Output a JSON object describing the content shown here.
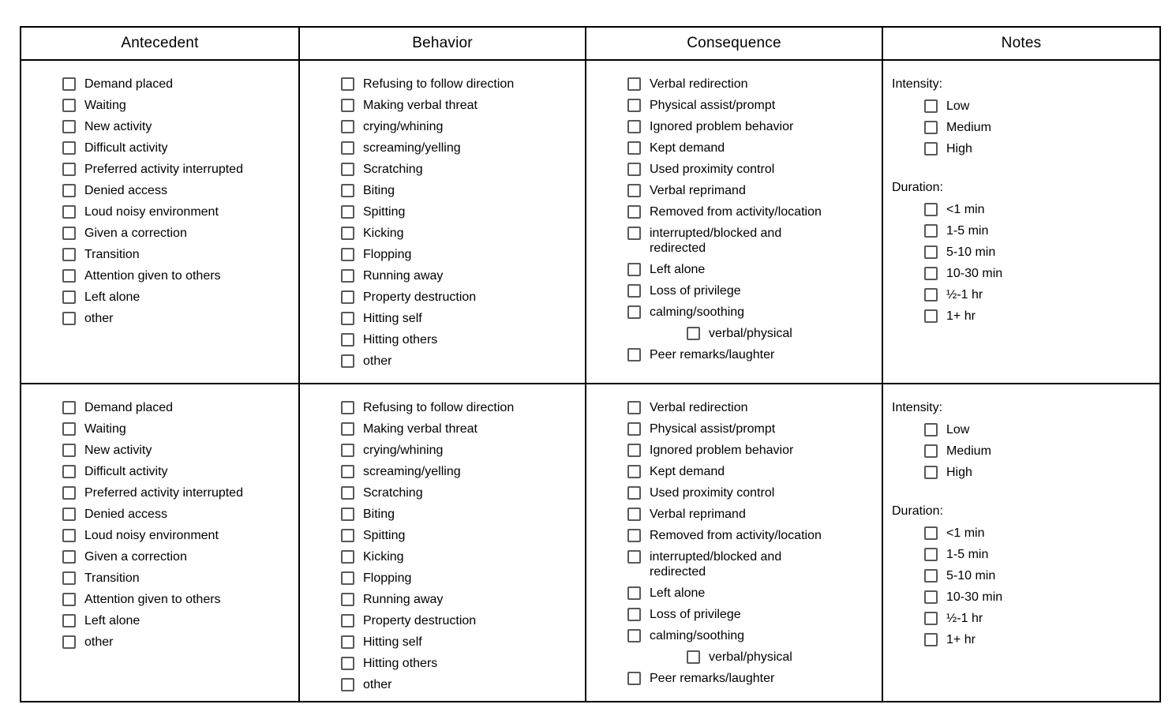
{
  "headers": [
    "Antecedent",
    "Behavior",
    "Consequence",
    "Notes"
  ],
  "checklists": {
    "antecedent": [
      "Demand placed",
      "Waiting",
      "New activity",
      "Difficult activity",
      "Preferred activity interrupted",
      "Denied access",
      "Loud noisy environment",
      "Given a correction",
      "Transition",
      "Attention given to others",
      "Left alone",
      "other"
    ],
    "behavior": [
      "Refusing to follow direction",
      "Making verbal threat",
      "crying/whining",
      "screaming/yelling",
      "Scratching",
      "Biting",
      "Spitting",
      "Kicking",
      "Flopping",
      "Running away",
      "Property destruction",
      "Hitting self",
      "Hitting others",
      "other"
    ],
    "consequence": [
      "Verbal redirection",
      "Physical assist/prompt",
      "Ignored problem behavior",
      "Kept demand",
      "Used proximity control",
      "Verbal reprimand",
      "Removed from activity/location",
      "interrupted/blocked and\nredirected",
      "Left alone",
      "Loss of privilege",
      "calming/soothing",
      {
        "label": "verbal/physical",
        "indent": true
      },
      "Peer remarks/laughter"
    ],
    "intensity": [
      "Low",
      "Medium",
      "High"
    ],
    "duration": [
      "<1 min",
      "1-5 min",
      "5-10 min",
      "10-30 min",
      "½-1 hr",
      "1+ hr"
    ]
  },
  "notes": {
    "intensity_label": "Intensity:",
    "duration_label": "Duration:"
  },
  "colors": {
    "table_border": "#000000",
    "checkbox_border": "#58595b",
    "text": "#000000",
    "background": "#ffffff"
  }
}
